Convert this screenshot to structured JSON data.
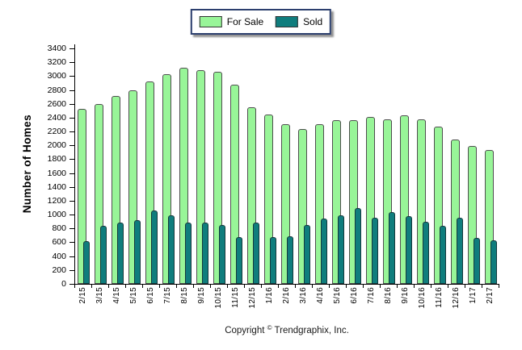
{
  "legend": {
    "items": [
      {
        "label": "For Sale",
        "color": "#98f598"
      },
      {
        "label": "Sold",
        "color": "#0f7d7d"
      }
    ]
  },
  "footer": {
    "prefix": "Copyright",
    "symbol": "©",
    "company": "Trendgraphix, Inc."
  },
  "colors": {
    "for_sale_fill": "#98f598",
    "sold_fill": "#0f7d7d",
    "bar_outline": "#4f4f4f",
    "legend_border": "#2c3f6e",
    "axis": "#000000"
  },
  "chart_data": {
    "type": "bar",
    "title": "",
    "ylabel": "Number of Homes",
    "xlabel": "",
    "ylim": [
      0,
      3400
    ],
    "ytick_step": 200,
    "grid": false,
    "legend_position": "top-center",
    "categories": [
      "2/15",
      "3/15",
      "4/15",
      "5/15",
      "6/15",
      "7/15",
      "8/15",
      "9/15",
      "10/15",
      "11/15",
      "12/15",
      "1/16",
      "2/16",
      "3/16",
      "4/16",
      "5/16",
      "6/16",
      "7/16",
      "8/16",
      "9/16",
      "10/16",
      "11/16",
      "12/16",
      "1/17",
      "2/17"
    ],
    "series": [
      {
        "name": "For Sale",
        "color": "#98f598",
        "values": [
          2530,
          2600,
          2710,
          2800,
          2920,
          3030,
          3120,
          3090,
          3060,
          2880,
          2550,
          2440,
          2310,
          2240,
          2300,
          2360,
          2360,
          2410,
          2380,
          2430,
          2380,
          2270,
          2090,
          1990,
          1930
        ]
      },
      {
        "name": "Sold",
        "color": "#0f7d7d",
        "values": [
          620,
          840,
          890,
          920,
          1060,
          990,
          880,
          890,
          850,
          670,
          890,
          670,
          690,
          850,
          940,
          990,
          1100,
          960,
          1040,
          980,
          900,
          840,
          960,
          660,
          630
        ]
      }
    ]
  }
}
